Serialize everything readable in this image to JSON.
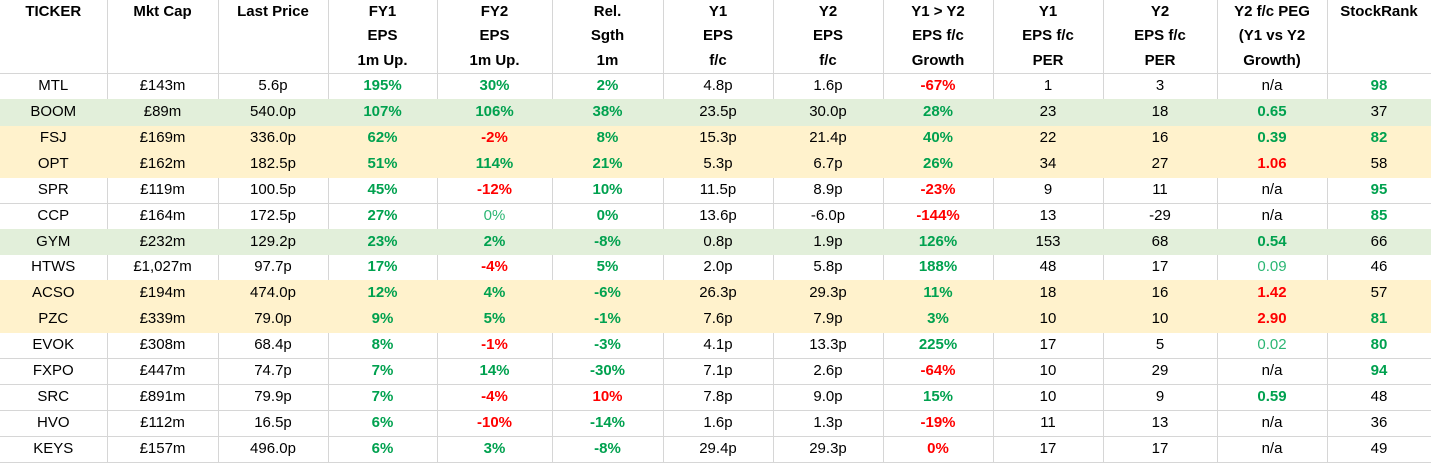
{
  "table": {
    "columns": [
      {
        "id": "ticker",
        "lines": [
          "TICKER"
        ]
      },
      {
        "id": "mkt-cap",
        "lines": [
          "Mkt Cap"
        ]
      },
      {
        "id": "last-price",
        "lines": [
          "Last Price"
        ]
      },
      {
        "id": "fy1-eps-1m-up",
        "lines": [
          "FY1",
          "EPS",
          "1m Up."
        ]
      },
      {
        "id": "fy2-eps-1m-up",
        "lines": [
          "FY2",
          "EPS",
          "1m Up."
        ]
      },
      {
        "id": "rel-sgth-1m",
        "lines": [
          "Rel.",
          "Sgth",
          "1m"
        ]
      },
      {
        "id": "y1-eps-fc",
        "lines": [
          "Y1",
          "EPS",
          "f/c"
        ]
      },
      {
        "id": "y2-eps-fc",
        "lines": [
          "Y2",
          "EPS",
          "f/c"
        ]
      },
      {
        "id": "y1-y2-eps-fc-growth",
        "lines": [
          "Y1 > Y2",
          "EPS f/c",
          "Growth"
        ]
      },
      {
        "id": "y1-eps-fc-per",
        "lines": [
          "Y1",
          "EPS f/c",
          "PER"
        ]
      },
      {
        "id": "y2-eps-fc-per",
        "lines": [
          "Y2",
          "EPS f/c",
          "PER"
        ]
      },
      {
        "id": "y2-fc-peg",
        "lines": [
          "Y2 f/c PEG",
          "(Y1 vs Y2",
          "Growth)"
        ]
      },
      {
        "id": "stockrank",
        "lines": [
          "StockRank"
        ]
      }
    ],
    "rows": [
      {
        "bg": "white",
        "cells": [
          {
            "t": "MTL",
            "s": "k"
          },
          {
            "t": "£143m",
            "s": "k"
          },
          {
            "t": "5.6p",
            "s": "k"
          },
          {
            "t": "195%",
            "s": "g"
          },
          {
            "t": "30%",
            "s": "g"
          },
          {
            "t": "2%",
            "s": "g"
          },
          {
            "t": "4.8p",
            "s": "k"
          },
          {
            "t": "1.6p",
            "s": "k"
          },
          {
            "t": "-67%",
            "s": "r"
          },
          {
            "t": "1",
            "s": "k"
          },
          {
            "t": "3",
            "s": "k"
          },
          {
            "t": "n/a",
            "s": "k"
          },
          {
            "t": "98",
            "s": "g"
          }
        ]
      },
      {
        "bg": "green",
        "cells": [
          {
            "t": "BOOM",
            "s": "k"
          },
          {
            "t": "£89m",
            "s": "k"
          },
          {
            "t": "540.0p",
            "s": "k"
          },
          {
            "t": "107%",
            "s": "g"
          },
          {
            "t": "106%",
            "s": "g"
          },
          {
            "t": "38%",
            "s": "g"
          },
          {
            "t": "23.5p",
            "s": "k"
          },
          {
            "t": "30.0p",
            "s": "k"
          },
          {
            "t": "28%",
            "s": "g"
          },
          {
            "t": "23",
            "s": "k"
          },
          {
            "t": "18",
            "s": "k"
          },
          {
            "t": "0.65",
            "s": "g"
          },
          {
            "t": "37",
            "s": "k"
          }
        ]
      },
      {
        "bg": "yellow",
        "cells": [
          {
            "t": "FSJ",
            "s": "k"
          },
          {
            "t": "£169m",
            "s": "k"
          },
          {
            "t": "336.0p",
            "s": "k"
          },
          {
            "t": "62%",
            "s": "g"
          },
          {
            "t": "-2%",
            "s": "r"
          },
          {
            "t": "8%",
            "s": "g"
          },
          {
            "t": "15.3p",
            "s": "k"
          },
          {
            "t": "21.4p",
            "s": "k"
          },
          {
            "t": "40%",
            "s": "g"
          },
          {
            "t": "22",
            "s": "k"
          },
          {
            "t": "16",
            "s": "k"
          },
          {
            "t": "0.39",
            "s": "g"
          },
          {
            "t": "82",
            "s": "g"
          }
        ]
      },
      {
        "bg": "yellow",
        "cells": [
          {
            "t": "OPT",
            "s": "k"
          },
          {
            "t": "£162m",
            "s": "k"
          },
          {
            "t": "182.5p",
            "s": "k"
          },
          {
            "t": "51%",
            "s": "g"
          },
          {
            "t": "114%",
            "s": "g"
          },
          {
            "t": "21%",
            "s": "g"
          },
          {
            "t": "5.3p",
            "s": "k"
          },
          {
            "t": "6.7p",
            "s": "k"
          },
          {
            "t": "26%",
            "s": "g"
          },
          {
            "t": "34",
            "s": "k"
          },
          {
            "t": "27",
            "s": "k"
          },
          {
            "t": "1.06",
            "s": "r"
          },
          {
            "t": "58",
            "s": "k"
          }
        ]
      },
      {
        "bg": "white",
        "cells": [
          {
            "t": "SPR",
            "s": "k"
          },
          {
            "t": "£119m",
            "s": "k"
          },
          {
            "t": "100.5p",
            "s": "k"
          },
          {
            "t": "45%",
            "s": "g"
          },
          {
            "t": "-12%",
            "s": "r"
          },
          {
            "t": "10%",
            "s": "g"
          },
          {
            "t": "11.5p",
            "s": "k"
          },
          {
            "t": "8.9p",
            "s": "k"
          },
          {
            "t": "-23%",
            "s": "r"
          },
          {
            "t": "9",
            "s": "k"
          },
          {
            "t": "11",
            "s": "k"
          },
          {
            "t": "n/a",
            "s": "k"
          },
          {
            "t": "95",
            "s": "g"
          }
        ]
      },
      {
        "bg": "white",
        "cells": [
          {
            "t": "CCP",
            "s": "k"
          },
          {
            "t": "£164m",
            "s": "k"
          },
          {
            "t": "172.5p",
            "s": "k"
          },
          {
            "t": "27%",
            "s": "g"
          },
          {
            "t": "0%",
            "s": "gl"
          },
          {
            "t": "0%",
            "s": "g"
          },
          {
            "t": "13.6p",
            "s": "k"
          },
          {
            "t": "-6.0p",
            "s": "k"
          },
          {
            "t": "-144%",
            "s": "r"
          },
          {
            "t": "13",
            "s": "k"
          },
          {
            "t": "-29",
            "s": "k"
          },
          {
            "t": "n/a",
            "s": "k"
          },
          {
            "t": "85",
            "s": "g"
          }
        ]
      },
      {
        "bg": "green",
        "cells": [
          {
            "t": "GYM",
            "s": "k"
          },
          {
            "t": "£232m",
            "s": "k"
          },
          {
            "t": "129.2p",
            "s": "k"
          },
          {
            "t": "23%",
            "s": "g"
          },
          {
            "t": "2%",
            "s": "g"
          },
          {
            "t": "-8%",
            "s": "g"
          },
          {
            "t": "0.8p",
            "s": "k"
          },
          {
            "t": "1.9p",
            "s": "k"
          },
          {
            "t": "126%",
            "s": "g"
          },
          {
            "t": "153",
            "s": "k"
          },
          {
            "t": "68",
            "s": "k"
          },
          {
            "t": "0.54",
            "s": "g"
          },
          {
            "t": "66",
            "s": "k"
          }
        ]
      },
      {
        "bg": "white",
        "cells": [
          {
            "t": "HTWS",
            "s": "k"
          },
          {
            "t": "£1,027m",
            "s": "k"
          },
          {
            "t": "97.7p",
            "s": "k"
          },
          {
            "t": "17%",
            "s": "g"
          },
          {
            "t": "-4%",
            "s": "r"
          },
          {
            "t": "5%",
            "s": "g"
          },
          {
            "t": "2.0p",
            "s": "k"
          },
          {
            "t": "5.8p",
            "s": "k"
          },
          {
            "t": "188%",
            "s": "g"
          },
          {
            "t": "48",
            "s": "k"
          },
          {
            "t": "17",
            "s": "k"
          },
          {
            "t": "0.09",
            "s": "gl"
          },
          {
            "t": "46",
            "s": "k"
          }
        ]
      },
      {
        "bg": "yellow",
        "cells": [
          {
            "t": "ACSO",
            "s": "k"
          },
          {
            "t": "£194m",
            "s": "k"
          },
          {
            "t": "474.0p",
            "s": "k"
          },
          {
            "t": "12%",
            "s": "g"
          },
          {
            "t": "4%",
            "s": "g"
          },
          {
            "t": "-6%",
            "s": "g"
          },
          {
            "t": "26.3p",
            "s": "k"
          },
          {
            "t": "29.3p",
            "s": "k"
          },
          {
            "t": "11%",
            "s": "g"
          },
          {
            "t": "18",
            "s": "k"
          },
          {
            "t": "16",
            "s": "k"
          },
          {
            "t": "1.42",
            "s": "r"
          },
          {
            "t": "57",
            "s": "k"
          }
        ]
      },
      {
        "bg": "yellow",
        "cells": [
          {
            "t": "PZC",
            "s": "k"
          },
          {
            "t": "£339m",
            "s": "k"
          },
          {
            "t": "79.0p",
            "s": "k"
          },
          {
            "t": "9%",
            "s": "g"
          },
          {
            "t": "5%",
            "s": "g"
          },
          {
            "t": "-1%",
            "s": "g"
          },
          {
            "t": "7.6p",
            "s": "k"
          },
          {
            "t": "7.9p",
            "s": "k"
          },
          {
            "t": "3%",
            "s": "g"
          },
          {
            "t": "10",
            "s": "k"
          },
          {
            "t": "10",
            "s": "k"
          },
          {
            "t": "2.90",
            "s": "r"
          },
          {
            "t": "81",
            "s": "g"
          }
        ]
      },
      {
        "bg": "white",
        "cells": [
          {
            "t": "EVOK",
            "s": "k"
          },
          {
            "t": "£308m",
            "s": "k"
          },
          {
            "t": "68.4p",
            "s": "k"
          },
          {
            "t": "8%",
            "s": "g"
          },
          {
            "t": "-1%",
            "s": "r"
          },
          {
            "t": "-3%",
            "s": "g"
          },
          {
            "t": "4.1p",
            "s": "k"
          },
          {
            "t": "13.3p",
            "s": "k"
          },
          {
            "t": "225%",
            "s": "g"
          },
          {
            "t": "17",
            "s": "k"
          },
          {
            "t": "5",
            "s": "k"
          },
          {
            "t": "0.02",
            "s": "gl"
          },
          {
            "t": "80",
            "s": "g"
          }
        ]
      },
      {
        "bg": "white",
        "cells": [
          {
            "t": "FXPO",
            "s": "k"
          },
          {
            "t": "£447m",
            "s": "k"
          },
          {
            "t": "74.7p",
            "s": "k"
          },
          {
            "t": "7%",
            "s": "g"
          },
          {
            "t": "14%",
            "s": "g"
          },
          {
            "t": "-30%",
            "s": "g"
          },
          {
            "t": "7.1p",
            "s": "k"
          },
          {
            "t": "2.6p",
            "s": "k"
          },
          {
            "t": "-64%",
            "s": "r"
          },
          {
            "t": "10",
            "s": "k"
          },
          {
            "t": "29",
            "s": "k"
          },
          {
            "t": "n/a",
            "s": "k"
          },
          {
            "t": "94",
            "s": "g"
          }
        ]
      },
      {
        "bg": "white",
        "cells": [
          {
            "t": "SRC",
            "s": "k"
          },
          {
            "t": "£891m",
            "s": "k"
          },
          {
            "t": "79.9p",
            "s": "k"
          },
          {
            "t": "7%",
            "s": "g"
          },
          {
            "t": "-4%",
            "s": "r"
          },
          {
            "t": "10%",
            "s": "r"
          },
          {
            "t": "7.8p",
            "s": "k"
          },
          {
            "t": "9.0p",
            "s": "k"
          },
          {
            "t": "15%",
            "s": "g"
          },
          {
            "t": "10",
            "s": "k"
          },
          {
            "t": "9",
            "s": "k"
          },
          {
            "t": "0.59",
            "s": "g"
          },
          {
            "t": "48",
            "s": "k"
          }
        ]
      },
      {
        "bg": "white",
        "cells": [
          {
            "t": "HVO",
            "s": "k"
          },
          {
            "t": "£112m",
            "s": "k"
          },
          {
            "t": "16.5p",
            "s": "k"
          },
          {
            "t": "6%",
            "s": "g"
          },
          {
            "t": "-10%",
            "s": "r"
          },
          {
            "t": "-14%",
            "s": "g"
          },
          {
            "t": "1.6p",
            "s": "k"
          },
          {
            "t": "1.3p",
            "s": "k"
          },
          {
            "t": "-19%",
            "s": "r"
          },
          {
            "t": "11",
            "s": "k"
          },
          {
            "t": "13",
            "s": "k"
          },
          {
            "t": "n/a",
            "s": "k"
          },
          {
            "t": "36",
            "s": "k"
          }
        ]
      },
      {
        "bg": "white",
        "cells": [
          {
            "t": "KEYS",
            "s": "k"
          },
          {
            "t": "£157m",
            "s": "k"
          },
          {
            "t": "496.0p",
            "s": "k"
          },
          {
            "t": "6%",
            "s": "g"
          },
          {
            "t": "3%",
            "s": "g"
          },
          {
            "t": "-8%",
            "s": "g"
          },
          {
            "t": "29.4p",
            "s": "k"
          },
          {
            "t": "29.3p",
            "s": "k"
          },
          {
            "t": "0%",
            "s": "r"
          },
          {
            "t": "17",
            "s": "k"
          },
          {
            "t": "17",
            "s": "k"
          },
          {
            "t": "n/a",
            "s": "k"
          },
          {
            "t": "49",
            "s": "k"
          }
        ]
      }
    ]
  },
  "colors": {
    "gridline": "#d6d6d6",
    "green_text": "#00a14f",
    "light_green_text": "#2bb673",
    "red_text": "#ff0000",
    "black_text": "#000000",
    "row_green": "#e2efda",
    "row_yellow": "#fff2cc",
    "row_white": "#ffffff"
  }
}
